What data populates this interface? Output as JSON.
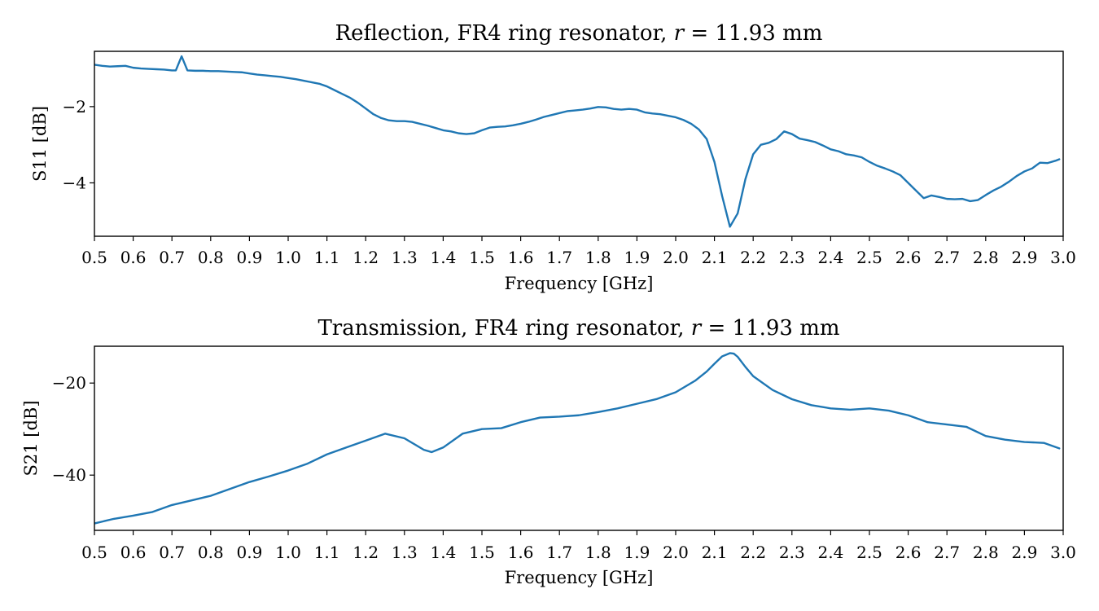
{
  "chart_data": [
    {
      "type": "line",
      "title_prefix": "Reflection, FR4 ring resonator, ",
      "title_var": "r",
      "title_suffix": " = 11.93 mm",
      "xlabel": "Frequency [GHz]",
      "ylabel": "S11 [dB]",
      "xlim": [
        0.5,
        3.0
      ],
      "ylim": [
        -5.4,
        -0.55
      ],
      "xticks": [
        0.5,
        0.6,
        0.7,
        0.8,
        0.9,
        1.0,
        1.1,
        1.2,
        1.3,
        1.4,
        1.5,
        1.6,
        1.7,
        1.8,
        1.9,
        2.0,
        2.1,
        2.2,
        2.3,
        2.4,
        2.5,
        2.6,
        2.7,
        2.8,
        2.9,
        3.0
      ],
      "xtick_labels": [
        "0.5",
        "0.6",
        "0.7",
        "0.8",
        "0.9",
        "1.0",
        "1.1",
        "1.2",
        "1.3",
        "1.4",
        "1.5",
        "1.6",
        "1.7",
        "1.8",
        "1.9",
        "2.0",
        "2.1",
        "2.2",
        "2.3",
        "2.4",
        "2.5",
        "2.6",
        "2.7",
        "2.8",
        "2.9",
        "3.0"
      ],
      "yticks": [
        -2,
        -4
      ],
      "ytick_labels": [
        "−2",
        "−4"
      ],
      "series": [
        {
          "color": "#1f77b4",
          "x": [
            0.5,
            0.52,
            0.54,
            0.56,
            0.58,
            0.6,
            0.62,
            0.64,
            0.66,
            0.68,
            0.7,
            0.71,
            0.725,
            0.74,
            0.76,
            0.78,
            0.8,
            0.82,
            0.84,
            0.86,
            0.88,
            0.9,
            0.92,
            0.94,
            0.96,
            0.98,
            1.0,
            1.02,
            1.04,
            1.06,
            1.08,
            1.1,
            1.12,
            1.14,
            1.16,
            1.18,
            1.2,
            1.22,
            1.24,
            1.26,
            1.28,
            1.3,
            1.32,
            1.34,
            1.36,
            1.38,
            1.4,
            1.42,
            1.44,
            1.46,
            1.48,
            1.5,
            1.52,
            1.54,
            1.56,
            1.58,
            1.6,
            1.62,
            1.64,
            1.66,
            1.68,
            1.7,
            1.72,
            1.74,
            1.76,
            1.78,
            1.8,
            1.82,
            1.84,
            1.86,
            1.88,
            1.9,
            1.92,
            1.94,
            1.96,
            1.98,
            2.0,
            2.02,
            2.04,
            2.06,
            2.08,
            2.1,
            2.12,
            2.14,
            2.16,
            2.18,
            2.2,
            2.22,
            2.24,
            2.26,
            2.28,
            2.3,
            2.32,
            2.34,
            2.36,
            2.38,
            2.4,
            2.42,
            2.44,
            2.46,
            2.48,
            2.5,
            2.52,
            2.54,
            2.56,
            2.58,
            2.6,
            2.62,
            2.64,
            2.66,
            2.68,
            2.7,
            2.72,
            2.74,
            2.76,
            2.78,
            2.8,
            2.82,
            2.84,
            2.86,
            2.88,
            2.9,
            2.92,
            2.94,
            2.96,
            2.98,
            2.99
          ],
          "y": [
            -0.9,
            -0.93,
            -0.95,
            -0.94,
            -0.93,
            -0.98,
            -1.0,
            -1.01,
            -1.02,
            -1.03,
            -1.05,
            -1.05,
            -0.68,
            -1.05,
            -1.06,
            -1.06,
            -1.07,
            -1.07,
            -1.08,
            -1.09,
            -1.1,
            -1.13,
            -1.16,
            -1.18,
            -1.2,
            -1.22,
            -1.25,
            -1.28,
            -1.32,
            -1.36,
            -1.4,
            -1.47,
            -1.57,
            -1.67,
            -1.77,
            -1.9,
            -2.05,
            -2.2,
            -2.3,
            -2.36,
            -2.38,
            -2.38,
            -2.4,
            -2.45,
            -2.5,
            -2.56,
            -2.62,
            -2.65,
            -2.7,
            -2.72,
            -2.7,
            -2.62,
            -2.55,
            -2.53,
            -2.52,
            -2.49,
            -2.45,
            -2.4,
            -2.34,
            -2.27,
            -2.22,
            -2.17,
            -2.12,
            -2.1,
            -2.08,
            -2.05,
            -2.01,
            -2.02,
            -2.06,
            -2.08,
            -2.06,
            -2.08,
            -2.15,
            -2.18,
            -2.2,
            -2.24,
            -2.28,
            -2.35,
            -2.45,
            -2.6,
            -2.85,
            -3.45,
            -4.35,
            -5.15,
            -4.8,
            -3.9,
            -3.25,
            -3.0,
            -2.95,
            -2.85,
            -2.65,
            -2.72,
            -2.84,
            -2.88,
            -2.93,
            -3.02,
            -3.12,
            -3.17,
            -3.25,
            -3.28,
            -3.33,
            -3.45,
            -3.55,
            -3.62,
            -3.7,
            -3.8,
            -4.0,
            -4.2,
            -4.4,
            -4.33,
            -4.37,
            -4.42,
            -4.43,
            -4.42,
            -4.48,
            -4.45,
            -4.32,
            -4.2,
            -4.1,
            -3.97,
            -3.82,
            -3.7,
            -3.62,
            -3.47,
            -3.48,
            -3.42,
            -3.38
          ]
        }
      ]
    },
    {
      "type": "line",
      "title_prefix": "Transmission, FR4 ring resonator, ",
      "title_var": "r",
      "title_suffix": " = 11.93 mm",
      "xlabel": "Frequency [GHz]",
      "ylabel": "S21 [dB]",
      "xlim": [
        0.5,
        3.0
      ],
      "ylim": [
        -52,
        -12
      ],
      "xticks": [
        0.5,
        0.6,
        0.7,
        0.8,
        0.9,
        1.0,
        1.1,
        1.2,
        1.3,
        1.4,
        1.5,
        1.6,
        1.7,
        1.8,
        1.9,
        2.0,
        2.1,
        2.2,
        2.3,
        2.4,
        2.5,
        2.6,
        2.7,
        2.8,
        2.9,
        3.0
      ],
      "xtick_labels": [
        "0.5",
        "0.6",
        "0.7",
        "0.8",
        "0.9",
        "1.0",
        "1.1",
        "1.2",
        "1.3",
        "1.4",
        "1.5",
        "1.6",
        "1.7",
        "1.8",
        "1.9",
        "2.0",
        "2.1",
        "2.2",
        "2.3",
        "2.4",
        "2.5",
        "2.6",
        "2.7",
        "2.8",
        "2.9",
        "3.0"
      ],
      "yticks": [
        -20,
        -40
      ],
      "ytick_labels": [
        "−20",
        "−40"
      ],
      "series": [
        {
          "color": "#1f77b4",
          "x": [
            0.5,
            0.55,
            0.6,
            0.65,
            0.7,
            0.75,
            0.8,
            0.85,
            0.9,
            0.95,
            1.0,
            1.05,
            1.1,
            1.15,
            1.2,
            1.25,
            1.3,
            1.35,
            1.37,
            1.4,
            1.45,
            1.5,
            1.55,
            1.6,
            1.65,
            1.7,
            1.75,
            1.8,
            1.85,
            1.9,
            1.95,
            2.0,
            2.05,
            2.08,
            2.1,
            2.12,
            2.14,
            2.15,
            2.16,
            2.18,
            2.2,
            2.25,
            2.3,
            2.35,
            2.4,
            2.45,
            2.5,
            2.55,
            2.6,
            2.65,
            2.7,
            2.75,
            2.8,
            2.85,
            2.9,
            2.95,
            2.99
          ],
          "y": [
            -50.5,
            -49.5,
            -48.8,
            -48.0,
            -46.5,
            -45.5,
            -44.5,
            -43.0,
            -41.5,
            -40.3,
            -39.0,
            -37.5,
            -35.5,
            -34.0,
            -32.5,
            -31.0,
            -32.0,
            -34.5,
            -35.0,
            -34.0,
            -31.0,
            -30.0,
            -29.8,
            -28.5,
            -27.5,
            -27.3,
            -27.0,
            -26.3,
            -25.5,
            -24.5,
            -23.5,
            -22.0,
            -19.5,
            -17.5,
            -15.8,
            -14.2,
            -13.5,
            -13.6,
            -14.3,
            -16.5,
            -18.5,
            -21.5,
            -23.5,
            -24.8,
            -25.5,
            -25.8,
            -25.5,
            -26.0,
            -27.0,
            -28.5,
            -29.0,
            -29.5,
            -31.5,
            -32.3,
            -32.8,
            -33.0,
            -34.2
          ]
        }
      ]
    }
  ]
}
